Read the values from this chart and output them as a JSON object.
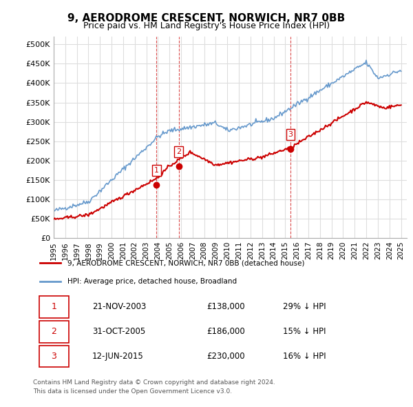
{
  "title": "9, AERODROME CRESCENT, NORWICH, NR7 0BB",
  "subtitle": "Price paid vs. HM Land Registry's House Price Index (HPI)",
  "ylim": [
    0,
    520000
  ],
  "yticks": [
    0,
    50000,
    100000,
    150000,
    200000,
    250000,
    300000,
    350000,
    400000,
    450000,
    500000
  ],
  "ytick_labels": [
    "£0",
    "£50K",
    "£100K",
    "£150K",
    "£200K",
    "£250K",
    "£300K",
    "£350K",
    "£400K",
    "£450K",
    "£500K"
  ],
  "legend_line1": "9, AERODROME CRESCENT, NORWICH, NR7 0BB (detached house)",
  "legend_line2": "HPI: Average price, detached house, Broadland",
  "sale1_date": "21-NOV-2003",
  "sale1_price": "£138,000",
  "sale1_hpi": "29% ↓ HPI",
  "sale2_date": "31-OCT-2005",
  "sale2_price": "£186,000",
  "sale2_hpi": "15% ↓ HPI",
  "sale3_date": "12-JUN-2015",
  "sale3_price": "£230,000",
  "sale3_hpi": "16% ↓ HPI",
  "footer1": "Contains HM Land Registry data © Crown copyright and database right 2024.",
  "footer2": "This data is licensed under the Open Government Licence v3.0.",
  "red_color": "#cc0000",
  "blue_color": "#6699cc",
  "grid_color": "#dddddd",
  "background_color": "#ffffff"
}
